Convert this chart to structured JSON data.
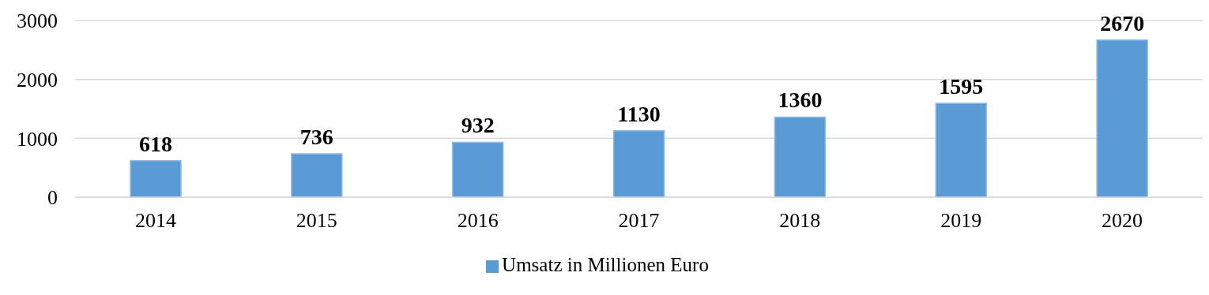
{
  "chart_data": {
    "type": "bar",
    "categories": [
      "2014",
      "2015",
      "2016",
      "2017",
      "2018",
      "2019",
      "2020"
    ],
    "series": [
      {
        "name": "Umsatz in Millionen Euro",
        "color": "#5b9bd5",
        "values": [
          618,
          736,
          932,
          1130,
          1360,
          1595,
          2670
        ]
      }
    ],
    "ylim": [
      0,
      3000
    ],
    "yticks": [
      0,
      1000,
      2000,
      3000
    ],
    "grid": "y",
    "legend": "bottom",
    "data_labels": true
  }
}
